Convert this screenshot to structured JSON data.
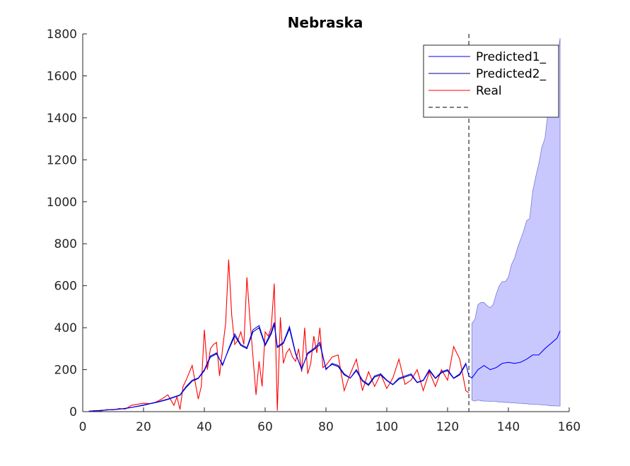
{
  "chart_data": {
    "type": "line",
    "title": "Nebraska",
    "xlabel": "",
    "ylabel": "",
    "xlim": [
      0,
      160
    ],
    "ylim": [
      0,
      1800
    ],
    "xticks": [
      0,
      20,
      40,
      60,
      80,
      100,
      120,
      140,
      160
    ],
    "yticks": [
      0,
      200,
      400,
      600,
      800,
      1000,
      1200,
      1400,
      1600,
      1800
    ],
    "legend_position": "top-right",
    "vline": {
      "x": 127,
      "style": "dashed",
      "color": "#000000"
    },
    "series": [
      {
        "name": "Predicted1_",
        "color": "#0000ff",
        "x": [
          2,
          4,
          6,
          8,
          10,
          12,
          14,
          16,
          18,
          20,
          22,
          24,
          26,
          28,
          30,
          32,
          34,
          36,
          38,
          40,
          42,
          44,
          46,
          48,
          50,
          52,
          54,
          56,
          58,
          60,
          62,
          63,
          64,
          66,
          68,
          70,
          72,
          74,
          76,
          78,
          80,
          82,
          84,
          86,
          88,
          90,
          92,
          94,
          96,
          98,
          100,
          102,
          104,
          106,
          108,
          110,
          112,
          114,
          116,
          118,
          120,
          122,
          124,
          126,
          127,
          128,
          130,
          132,
          134,
          136,
          138,
          140,
          142,
          144,
          146,
          148,
          150,
          152,
          154,
          156,
          157
        ],
        "values": [
          2,
          4,
          6,
          8,
          10,
          12,
          16,
          20,
          26,
          32,
          38,
          44,
          52,
          60,
          70,
          80,
          120,
          150,
          160,
          200,
          265,
          280,
          220,
          300,
          370,
          320,
          305,
          390,
          410,
          320,
          380,
          425,
          310,
          330,
          405,
          280,
          200,
          280,
          300,
          330,
          200,
          230,
          220,
          180,
          160,
          200,
          150,
          130,
          170,
          180,
          150,
          130,
          160,
          170,
          180,
          140,
          150,
          200,
          160,
          190,
          200,
          160,
          180,
          230,
          170,
          160,
          200,
          220,
          200,
          210,
          230,
          235,
          230,
          235,
          250,
          270,
          270,
          300,
          325,
          350,
          385
        ]
      },
      {
        "name": "Predicted2_",
        "color": "#00008b",
        "x": [
          2,
          4,
          6,
          8,
          10,
          12,
          14,
          16,
          18,
          20,
          22,
          24,
          26,
          28,
          30,
          32,
          34,
          36,
          38,
          40,
          42,
          44,
          46,
          48,
          50,
          52,
          54,
          56,
          58,
          60,
          62,
          63,
          64,
          66,
          68,
          70,
          72,
          74,
          76,
          78,
          80,
          82,
          84,
          86,
          88,
          90,
          92,
          94,
          96,
          98,
          100,
          102,
          104,
          106,
          108,
          110,
          112,
          114,
          116,
          118,
          120,
          122,
          124,
          126
        ],
        "values": [
          2,
          4,
          5,
          8,
          10,
          12,
          15,
          20,
          25,
          30,
          37,
          43,
          50,
          58,
          68,
          78,
          115,
          145,
          158,
          195,
          260,
          275,
          225,
          295,
          360,
          315,
          300,
          380,
          400,
          315,
          370,
          415,
          305,
          325,
          395,
          275,
          205,
          275,
          295,
          320,
          205,
          225,
          215,
          175,
          160,
          195,
          145,
          125,
          165,
          175,
          148,
          128,
          155,
          165,
          175,
          138,
          148,
          195,
          158,
          185,
          195,
          158,
          175,
          225
        ]
      },
      {
        "name": "Real",
        "color": "#ff0000",
        "x": [
          2,
          4,
          6,
          8,
          10,
          12,
          14,
          16,
          18,
          20,
          22,
          24,
          26,
          28,
          30,
          31,
          32,
          33,
          34,
          36,
          38,
          39,
          40,
          41,
          42,
          43,
          44,
          45,
          46,
          47,
          48,
          49,
          50,
          51,
          52,
          53,
          54,
          55,
          56,
          57,
          58,
          59,
          60,
          61,
          62,
          63,
          64,
          65,
          66,
          67,
          68,
          69,
          70,
          71,
          72,
          73,
          74,
          75,
          76,
          77,
          78,
          79,
          80,
          82,
          84,
          86,
          88,
          90,
          92,
          94,
          96,
          98,
          100,
          102,
          104,
          106,
          108,
          110,
          112,
          114,
          116,
          118,
          120,
          122,
          124,
          126,
          127
        ],
        "values": [
          2,
          5,
          3,
          10,
          8,
          15,
          12,
          30,
          35,
          40,
          38,
          45,
          60,
          80,
          30,
          70,
          10,
          120,
          150,
          220,
          60,
          120,
          390,
          200,
          300,
          320,
          330,
          170,
          300,
          420,
          725,
          460,
          320,
          340,
          380,
          320,
          640,
          440,
          260,
          80,
          240,
          120,
          380,
          360,
          400,
          610,
          5,
          450,
          230,
          280,
          300,
          260,
          240,
          300,
          190,
          400,
          180,
          230,
          360,
          280,
          400,
          210,
          220,
          260,
          270,
          100,
          180,
          250,
          100,
          190,
          120,
          180,
          110,
          160,
          250,
          130,
          150,
          200,
          100,
          190,
          120,
          200,
          150,
          310,
          250,
          100,
          90
        ]
      }
    ],
    "band": {
      "name": "",
      "color": "#c8c8ff",
      "x": [
        128,
        129,
        130,
        131,
        132,
        133,
        134,
        135,
        136,
        137,
        138,
        139,
        140,
        141,
        142,
        143,
        144,
        145,
        146,
        147,
        148,
        149,
        150,
        151,
        152,
        153,
        154,
        155,
        156,
        157
      ],
      "upper": [
        420,
        440,
        510,
        520,
        520,
        505,
        495,
        510,
        560,
        600,
        620,
        620,
        640,
        700,
        730,
        780,
        820,
        860,
        910,
        920,
        1050,
        1120,
        1180,
        1260,
        1300,
        1420,
        1500,
        1600,
        1680,
        1780
      ],
      "lower": [
        55,
        50,
        55,
        52,
        50,
        50,
        48,
        50,
        48,
        46,
        46,
        44,
        44,
        42,
        42,
        40,
        40,
        38,
        38,
        36,
        35,
        34,
        34,
        32,
        32,
        30,
        28,
        28,
        27,
        27
      ]
    }
  }
}
